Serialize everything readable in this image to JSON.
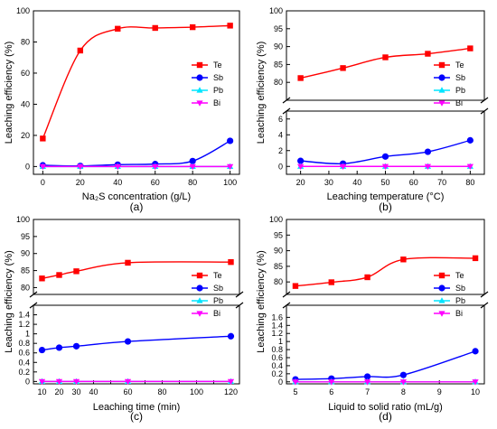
{
  "figure": {
    "series_styles": [
      {
        "name": "Te",
        "color": "#ff0000",
        "marker": "square"
      },
      {
        "name": "Sb",
        "color": "#0000ff",
        "marker": "circle"
      },
      {
        "name": "Pb",
        "color": "#00e5ff",
        "marker": "triangle-up"
      },
      {
        "name": "Bi",
        "color": "#ff00ff",
        "marker": "triangle-down"
      }
    ]
  },
  "chart_data": [
    {
      "type": "line",
      "panel_label": "(a)",
      "xlabel": "Na₂S concentration (g/L)",
      "ylabel": "Leaching efficiency (%)",
      "x": [
        0,
        20,
        40,
        60,
        80,
        100
      ],
      "xlim": [
        -5,
        105
      ],
      "xticks": [
        0,
        20,
        40,
        60,
        80,
        100
      ],
      "broken_axis": false,
      "ylim": [
        -5,
        100
      ],
      "yticks": [
        0,
        20,
        40,
        60,
        80,
        100
      ],
      "legend_position": "right",
      "series": [
        {
          "name": "Te",
          "values": [
            18,
            74.5,
            88.5,
            89,
            89.5,
            90.5
          ]
        },
        {
          "name": "Sb",
          "values": [
            0.8,
            0.4,
            1.2,
            1.6,
            3.5,
            16.5
          ]
        },
        {
          "name": "Pb",
          "values": [
            0,
            0,
            0,
            0,
            0,
            0
          ]
        },
        {
          "name": "Bi",
          "values": [
            0,
            0,
            0,
            0,
            0,
            0
          ]
        }
      ]
    },
    {
      "type": "line",
      "panel_label": "(b)",
      "xlabel": "Leaching temperature (°C)",
      "ylabel": "Leaching efficiency (%)",
      "x": [
        20,
        35,
        50,
        65,
        80
      ],
      "xlim": [
        15,
        85
      ],
      "xticks": [
        20,
        30,
        40,
        50,
        60,
        70,
        80
      ],
      "broken_axis": true,
      "ylim_lower": [
        -1,
        7
      ],
      "yticks_lower": [
        0,
        2,
        4,
        6
      ],
      "ylim_upper": [
        75,
        100
      ],
      "yticks_upper": [
        80,
        85,
        90,
        95,
        100
      ],
      "legend_position": "right",
      "series": [
        {
          "name": "Te",
          "values": [
            81.2,
            84,
            87,
            88,
            89.5
          ]
        },
        {
          "name": "Sb",
          "values": [
            0.7,
            0.35,
            1.25,
            1.85,
            3.3
          ]
        },
        {
          "name": "Pb",
          "values": [
            0,
            0,
            0,
            0,
            0
          ]
        },
        {
          "name": "Bi",
          "values": [
            0,
            0,
            0,
            0,
            0
          ]
        }
      ]
    },
    {
      "type": "line",
      "panel_label": "(c)",
      "xlabel": "Leaching time (min)",
      "ylabel": "Leaching efficiency (%)",
      "x": [
        10,
        20,
        30,
        60,
        120
      ],
      "xlim": [
        5,
        125
      ],
      "xticks": [
        0,
        10,
        20,
        30,
        40,
        50,
        60,
        70,
        80,
        90,
        100,
        110,
        120
      ],
      "xticklabels": [
        "",
        "10",
        "20",
        "30",
        "40",
        "",
        "60",
        "",
        "80",
        "",
        "100",
        "",
        "120"
      ],
      "broken_axis": true,
      "ylim_lower": [
        -0.05,
        1.6
      ],
      "yticks_lower": [
        0,
        0.2,
        0.4,
        0.6,
        0.8,
        1.0,
        1.2,
        1.4
      ],
      "ylim_upper": [
        78,
        100
      ],
      "yticks_upper": [
        80,
        85,
        90,
        95,
        100
      ],
      "legend_position": "right",
      "series": [
        {
          "name": "Te",
          "values": [
            82.7,
            83.7,
            84.8,
            87.3,
            87.5
          ]
        },
        {
          "name": "Sb",
          "values": [
            0.66,
            0.71,
            0.74,
            0.84,
            0.95
          ]
        },
        {
          "name": "Pb",
          "values": [
            0,
            0,
            0,
            0,
            0
          ]
        },
        {
          "name": "Bi",
          "values": [
            0,
            0,
            0,
            0,
            0
          ]
        }
      ]
    },
    {
      "type": "line",
      "panel_label": "(d)",
      "xlabel": "Liquid to solid ratio (mL/g)",
      "ylabel": "Leaching efficiency (%)",
      "x": [
        5,
        6,
        7,
        8,
        10
      ],
      "xlim": [
        4.75,
        10.25
      ],
      "xticks": [
        5,
        6,
        7,
        8,
        9,
        10
      ],
      "broken_axis": true,
      "ylim_lower": [
        -0.05,
        1.9
      ],
      "yticks_lower": [
        0,
        0.2,
        0.4,
        0.6,
        0.8,
        1.0,
        1.2,
        1.4,
        1.6
      ],
      "ylim_upper": [
        76,
        100
      ],
      "yticks_upper": [
        75,
        80,
        85,
        90,
        95,
        100
      ],
      "legend_position": "right",
      "series": [
        {
          "name": "Te",
          "values": [
            78.7,
            79.9,
            81.5,
            87.2,
            87.6
          ]
        },
        {
          "name": "Sb",
          "values": [
            0.06,
            0.08,
            0.13,
            0.17,
            0.76
          ]
        },
        {
          "name": "Pb",
          "values": [
            0,
            0,
            0,
            0,
            0
          ]
        },
        {
          "name": "Bi",
          "values": [
            0,
            0,
            0,
            0,
            0
          ]
        }
      ]
    }
  ]
}
